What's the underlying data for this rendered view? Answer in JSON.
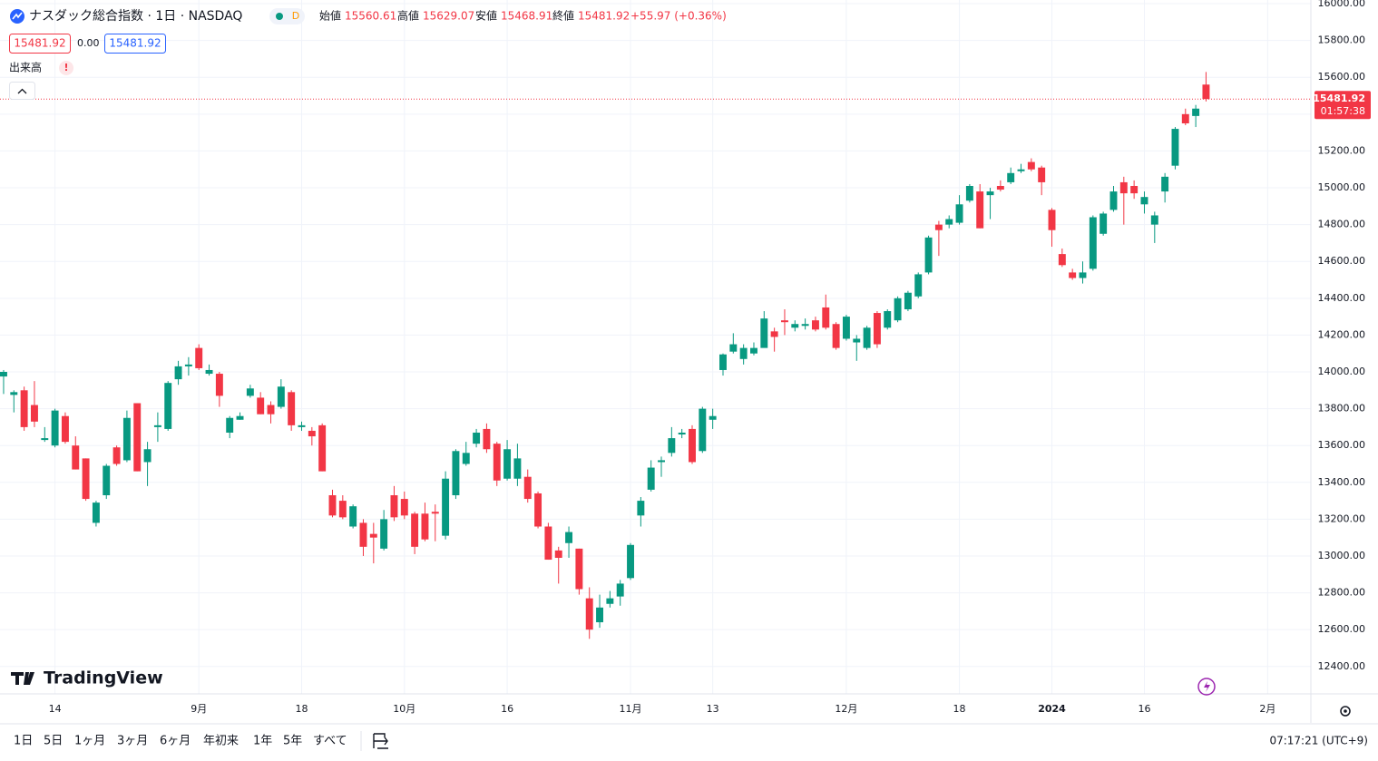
{
  "header": {
    "title": "ナスダック総合指数 · 1日 · NASDAQ",
    "interval_badge": "D",
    "legend": [
      {
        "label": "始値",
        "value": "15560.61"
      },
      {
        "label": "高値",
        "value": "15629.07"
      },
      {
        "label": "安値",
        "value": "15468.91"
      },
      {
        "label": "終値",
        "value": "15481.92"
      }
    ],
    "change": "+55.97 (+0.36%)",
    "price_boxes": [
      "15481.92",
      "0.00",
      "15481.92"
    ],
    "volume_label": "出来高",
    "alert": "!"
  },
  "logo": "TradingView",
  "toolbar": {
    "ranges": [
      "1日",
      "5日",
      "1ヶ月",
      "3ヶ月",
      "6ヶ月",
      "年初来",
      "1年",
      "5年",
      "すべて"
    ],
    "clock": "07:17:21 (UTC+9)"
  },
  "chart_data": {
    "type": "candlestick",
    "up_color": "#089981",
    "down_color": "#f23645",
    "grid": true,
    "open": [
      13975,
      13875,
      13900,
      13820,
      13630,
      13600,
      13760,
      13600,
      13530,
      13180,
      13330,
      13590,
      13520,
      13830,
      13510,
      13700,
      13690,
      13960,
      14030,
      14130,
      13990,
      13990,
      13670,
      13740,
      13870,
      13860,
      13820,
      13810,
      13890,
      13700,
      13680,
      13710,
      13330,
      13300,
      13160,
      13180,
      13120,
      13040,
      13330,
      13310,
      13230,
      13230,
      13240,
      13110,
      13330,
      13500,
      13610,
      13690,
      13610,
      13420,
      13420,
      13430,
      13340,
      13160,
      13030,
      13070,
      13040,
      12770,
      12640,
      12740,
      12780,
      12880,
      13220,
      13360,
      13510,
      13560,
      13660,
      13690,
      13570,
      13740,
      14010,
      14110,
      14070,
      14100,
      14130,
      14220,
      14280,
      14240,
      14250,
      14280,
      14350,
      14260,
      14180,
      14160,
      14130,
      14320,
      14240,
      14280,
      14340,
      14410,
      14540,
      14800,
      14800,
      14810,
      14930,
      14980,
      14960,
      15010,
      15030,
      15090,
      15140,
      15110,
      14880,
      14640,
      14540,
      14510,
      14560,
      14750,
      14880,
      15030,
      15010,
      14910,
      14800,
      14980,
      15120,
      15400,
      15390,
      15560.61
    ],
    "high": [
      14010,
      13900,
      13920,
      13950,
      13700,
      13800,
      13780,
      13650,
      13530,
      13300,
      13500,
      13600,
      13790,
      13830,
      13620,
      13780,
      13950,
      14060,
      14080,
      14150,
      14040,
      14000,
      13760,
      13780,
      13930,
      13890,
      13840,
      13960,
      13900,
      13730,
      13700,
      13720,
      13360,
      13330,
      13280,
      13200,
      13180,
      13250,
      13380,
      13350,
      13240,
      13290,
      13280,
      13460,
      13580,
      13620,
      13690,
      13720,
      13620,
      13630,
      13610,
      13470,
      13350,
      13180,
      13050,
      13160,
      13040,
      12830,
      12790,
      12810,
      12870,
      13070,
      13320,
      13520,
      13540,
      13700,
      13690,
      13710,
      13810,
      13800,
      14100,
      14210,
      14150,
      14160,
      14330,
      14240,
      14340,
      14280,
      14290,
      14300,
      14420,
      14270,
      14310,
      14200,
      14250,
      14330,
      14340,
      14410,
      14440,
      14540,
      14740,
      14820,
      14850,
      14960,
      15020,
      15020,
      15000,
      15040,
      15110,
      15130,
      15160,
      15120,
      14890,
      14670,
      14560,
      14600,
      14850,
      14870,
      15010,
      15060,
      15040,
      14980,
      14870,
      15080,
      15330,
      15430,
      15450,
      15629.07
    ],
    "low": [
      13880,
      13780,
      13680,
      13700,
      13620,
      13590,
      13610,
      13470,
      13300,
      13160,
      13310,
      13490,
      13510,
      13460,
      13380,
      13620,
      13680,
      13930,
      13980,
      14010,
      13980,
      13810,
      13640,
      13740,
      13860,
      13770,
      13720,
      13800,
      13680,
      13680,
      13600,
      13460,
      13210,
      13200,
      13150,
      13000,
      12960,
      13030,
      13190,
      13200,
      13010,
      13080,
      13080,
      13090,
      13310,
      13490,
      13590,
      13560,
      13380,
      13410,
      13380,
      13290,
      13150,
      12980,
      12850,
      12990,
      12790,
      12550,
      12610,
      12720,
      12730,
      12870,
      13160,
      13350,
      13430,
      13540,
      13640,
      13500,
      13560,
      13690,
      13980,
      14100,
      14040,
      14090,
      14140,
      14110,
      14200,
      14220,
      14230,
      14220,
      14230,
      14120,
      14170,
      14060,
      14120,
      14130,
      14230,
      14270,
      14330,
      14400,
      14530,
      14630,
      14780,
      14800,
      14920,
      14780,
      14830,
      14980,
      15020,
      15080,
      15090,
      14960,
      14680,
      14570,
      14500,
      14480,
      14550,
      14740,
      14870,
      14800,
      14940,
      14860,
      14700,
      14920,
      15100,
      15340,
      15330,
      15468.91
    ],
    "close": [
      14000,
      13890,
      13700,
      13730,
      13640,
      13790,
      13620,
      13470,
      13310,
      13290,
      13490,
      13500,
      13750,
      13460,
      13580,
      13710,
      13940,
      14030,
      14040,
      14020,
      14010,
      13870,
      13750,
      13760,
      13910,
      13770,
      13770,
      13920,
      13710,
      13710,
      13650,
      13460,
      13220,
      13210,
      13270,
      13050,
      13100,
      13200,
      13210,
      13220,
      13050,
      13090,
      13230,
      13420,
      13570,
      13560,
      13670,
      13580,
      13410,
      13580,
      13530,
      13310,
      13160,
      12980,
      12990,
      13130,
      12820,
      12600,
      12720,
      12770,
      12850,
      13060,
      13300,
      13480,
      13520,
      13640,
      13670,
      13510,
      13800,
      13760,
      14095,
      14150,
      14130,
      14130,
      14290,
      14190,
      14270,
      14260,
      14260,
      14230,
      14240,
      14130,
      14300,
      14180,
      14240,
      14150,
      14330,
      14400,
      14430,
      14530,
      14730,
      14770,
      14830,
      14910,
      15010,
      14780,
      14980,
      14990,
      15080,
      15100,
      15100,
      15030,
      14770,
      14580,
      14510,
      14540,
      14840,
      14860,
      14980,
      14970,
      14970,
      14950,
      14850,
      15060,
      15320,
      15350,
      15430,
      15481.92
    ],
    "xlim": [
      -0.35,
      127.2
    ],
    "xticks": [
      {
        "value": 5,
        "label": "14"
      },
      {
        "value": 19,
        "label": "9月"
      },
      {
        "value": 29,
        "label": "18"
      },
      {
        "value": 39,
        "label": "10月"
      },
      {
        "value": 49,
        "label": "16"
      },
      {
        "value": 61,
        "label": "11月"
      },
      {
        "value": 69,
        "label": "13"
      },
      {
        "value": 82,
        "label": "12月"
      },
      {
        "value": 93,
        "label": "18"
      },
      {
        "value": 102,
        "label": "2024"
      },
      {
        "value": 111,
        "label": "16"
      },
      {
        "value": 123,
        "label": "2月"
      }
    ],
    "ylim": [
      12251,
      16020
    ],
    "yticks": [
      {
        "value": 12400,
        "label": "12400.00"
      },
      {
        "value": 12600,
        "label": "12600.00"
      },
      {
        "value": 12800,
        "label": "12800.00"
      },
      {
        "value": 13000,
        "label": "13000.00"
      },
      {
        "value": 13200,
        "label": "13200.00"
      },
      {
        "value": 13400,
        "label": "13400.00"
      },
      {
        "value": 13600,
        "label": "13600.00"
      },
      {
        "value": 13800,
        "label": "13800.00"
      },
      {
        "value": 14000,
        "label": "14000.00"
      },
      {
        "value": 14200,
        "label": "14200.00"
      },
      {
        "value": 14400,
        "label": "14400.00"
      },
      {
        "value": 14600,
        "label": "14600.00"
      },
      {
        "value": 14800,
        "label": "14800.00"
      },
      {
        "value": 15000,
        "label": "15000.00"
      },
      {
        "value": 15200,
        "label": "15200.00"
      },
      {
        "value": 15400,
        "label": "15400.00"
      },
      {
        "value": 15600,
        "label": "15600.00"
      },
      {
        "value": 15800,
        "label": "15800.00"
      },
      {
        "value": 16000,
        "label": "16000.00"
      }
    ],
    "last_price": {
      "label": "15481.92",
      "countdown": "01:57:38"
    }
  }
}
